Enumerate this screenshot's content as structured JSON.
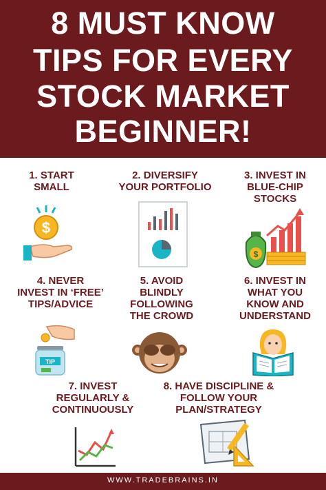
{
  "header": {
    "title_lines": [
      "8 MUST KNOW",
      "TIPS FOR EVERY",
      "STOCK MARKET",
      "BEGINNER!"
    ]
  },
  "tips": [
    {
      "lines": [
        "1. START",
        "SMALL"
      ],
      "icon": "hand-coin-icon"
    },
    {
      "lines": [
        "2. DIVERSIFY",
        "YOUR PORTFOLIO"
      ],
      "icon": "portfolio-chart-icon"
    },
    {
      "lines": [
        "3. INVEST IN",
        "BLUE-CHIP",
        "STOCKS"
      ],
      "icon": "money-growth-icon"
    },
    {
      "lines": [
        "4. NEVER",
        "INVEST IN ‘FREE’",
        "TIPS/ADVICE"
      ],
      "icon": "tip-jar-icon"
    },
    {
      "lines": [
        "5. AVOID",
        "BLINDLY",
        "FOLLOWING",
        "THE CROWD"
      ],
      "icon": "monkey-icon"
    },
    {
      "lines": [
        "6. INVEST IN",
        "WHAT YOU",
        "KNOW AND",
        "UNDERSTAND"
      ],
      "icon": "reading-person-icon"
    },
    {
      "lines": [
        "7. INVEST",
        "REGULARLY &",
        "CONTINUOUSLY"
      ],
      "icon": "line-chart-icon"
    },
    {
      "lines": [
        "8. HAVE DISCIPLINE &",
        "FOLLOW YOUR",
        "PLAN/STRATEGY"
      ],
      "icon": "blueprint-icon"
    }
  ],
  "footer": {
    "website": "WWW.TRADEBRAINS.IN"
  },
  "colors": {
    "brand": "#6b1a1e",
    "text": "#6b1a1e",
    "background": "#ffffff"
  }
}
